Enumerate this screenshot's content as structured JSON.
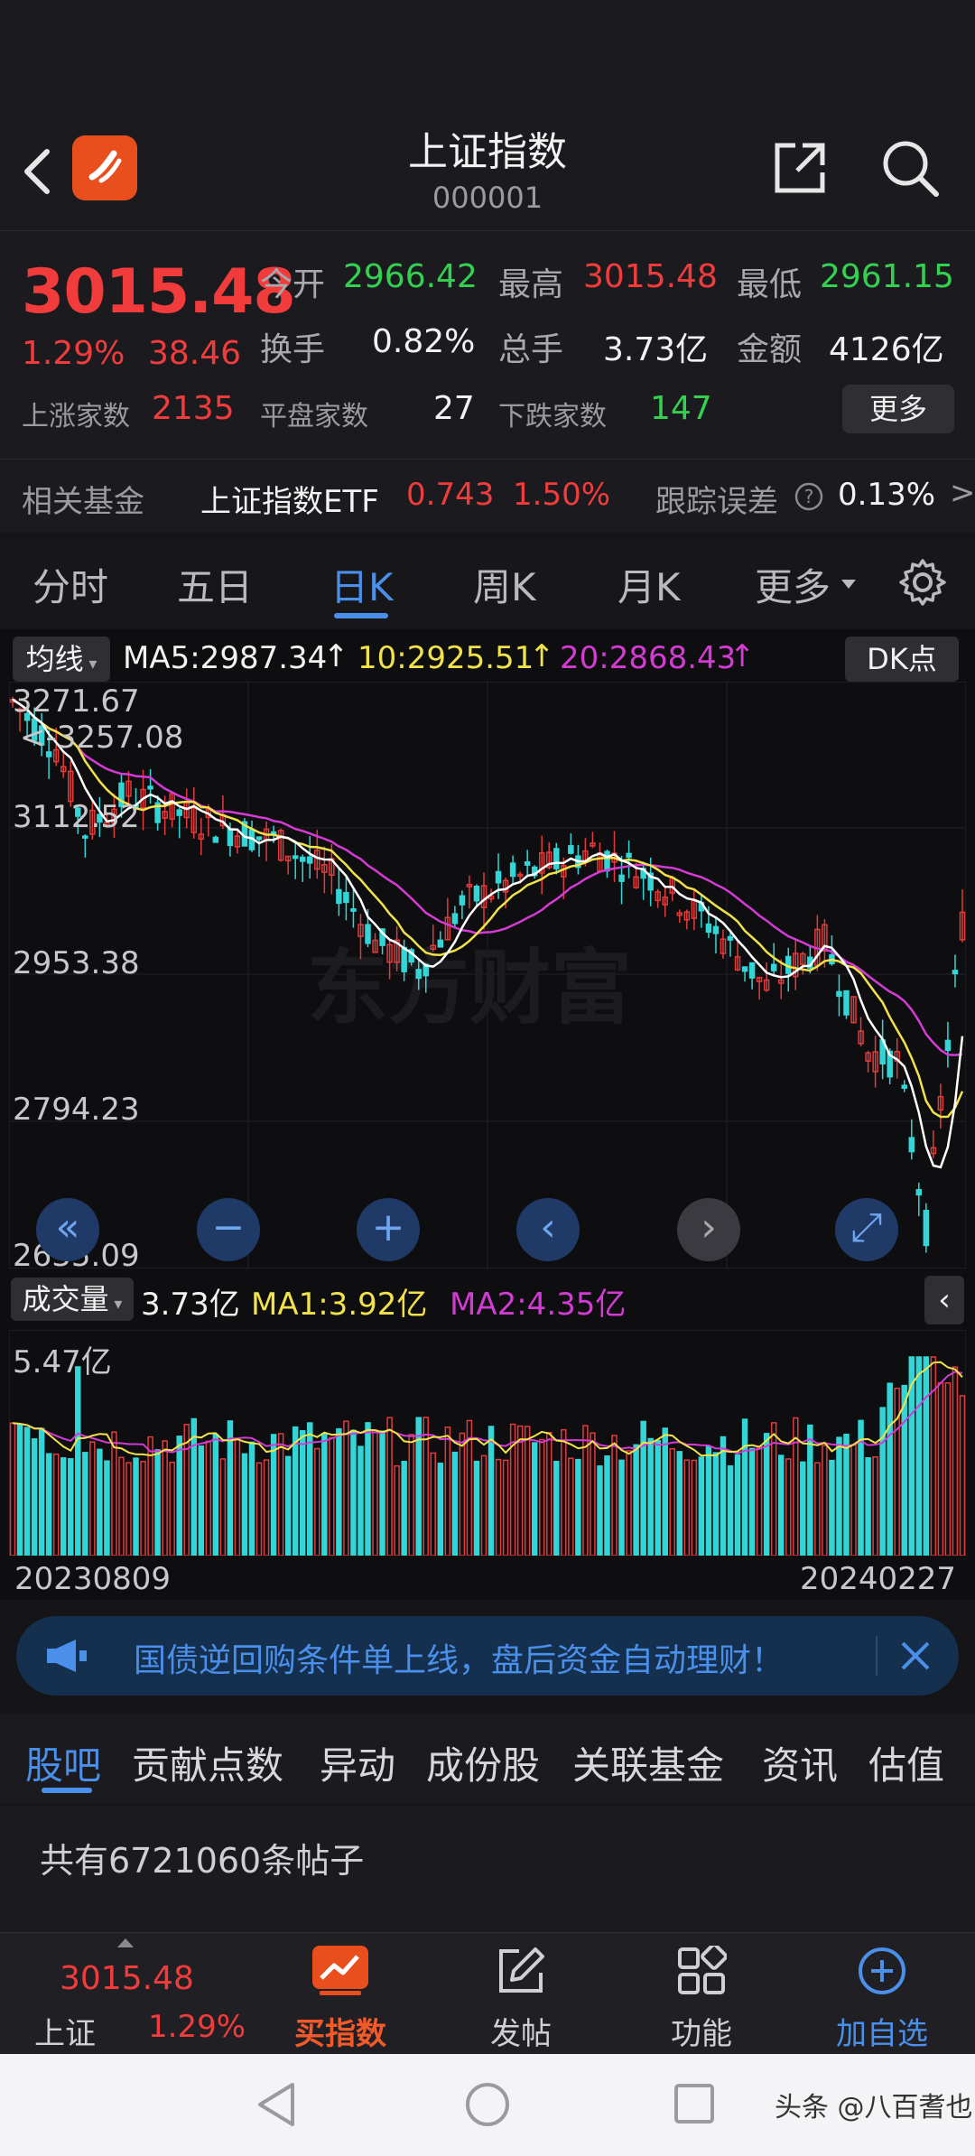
{
  "header": {
    "title": "上证指数",
    "code": "000001",
    "logo_text": "东方财富"
  },
  "quote": {
    "price": "3015.48",
    "change_pct": "1.29%",
    "change_amt": "38.46",
    "open_label": "今开",
    "open": "2966.42",
    "high_label": "最高",
    "high": "3015.48",
    "low_label": "最低",
    "low": "2961.15",
    "turnover_label": "换手",
    "turnover": "0.82%",
    "volume_label": "总手",
    "volume": "3.73亿",
    "amount_label": "金额",
    "amount": "4126亿",
    "up_label": "上涨家数",
    "up": "2135",
    "flat_label": "平盘家数",
    "flat": "27",
    "down_label": "下跌家数",
    "down": "147",
    "more_label": "更多"
  },
  "fund": {
    "label": "相关基金",
    "name": "上证指数ETF",
    "price": "0.743",
    "pct": "1.50%",
    "track_label": "跟踪误差",
    "track_value": "0.13%",
    "chevron": ">"
  },
  "tabs": {
    "items": [
      "分时",
      "五日",
      "日K",
      "周K",
      "月K",
      "更多"
    ],
    "active": "日K"
  },
  "kline": {
    "ma_selector": "均线",
    "ma5": "MA5:2987.34",
    "ma10": "10:2925.51",
    "ma20": "20:2868.43",
    "dk_label": "DK点",
    "y_labels": [
      "3271.67",
      "3112.52",
      "2953.38",
      "2794.23",
      "2635.09"
    ],
    "max_marker": "3257.08",
    "colors": {
      "up": "#e23b3b",
      "down": "#33d6d6",
      "ma5": "#ffffff",
      "ma10": "#f2e24a",
      "ma20": "#d43bd4"
    }
  },
  "volume": {
    "selector": "成交量",
    "value": "3.73亿",
    "ma1": "MA1:3.92亿",
    "ma2": "MA2:4.35亿",
    "max_label": "5.47亿",
    "start_date": "20230809",
    "end_date": "20240227"
  },
  "banner": {
    "text": "国债逆回购条件单上线，盘后资金自动理财！"
  },
  "subtabs": {
    "items": [
      "股吧",
      "贡献点数",
      "异动",
      "成份股",
      "关联基金",
      "资讯",
      "估值"
    ],
    "active": "股吧"
  },
  "posts": {
    "count_text": "共有6721060条帖子"
  },
  "bottom_nav": {
    "index_price": "3015.48",
    "index_name": "上证",
    "index_pct": "1.29%",
    "buy_label": "买指数",
    "post_label": "发帖",
    "func_label": "功能",
    "add_label": "加自选"
  },
  "watermark": "头条 @八百耆也"
}
